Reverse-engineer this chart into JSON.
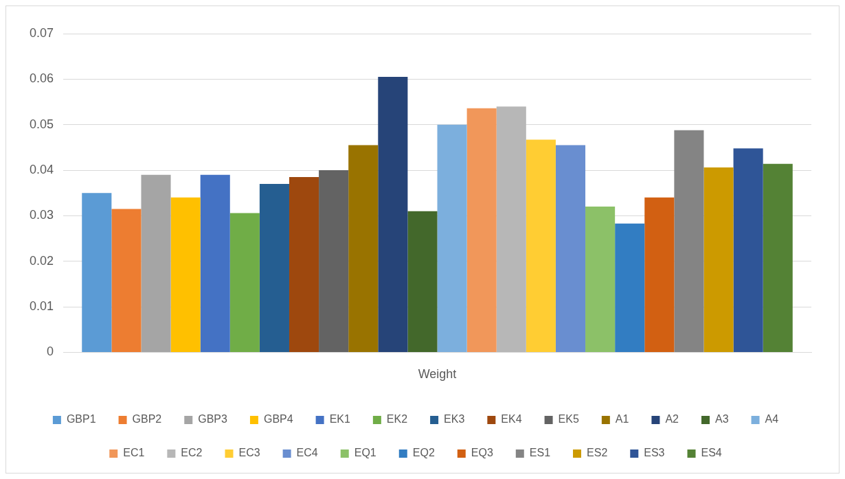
{
  "chart_data": {
    "type": "bar",
    "categories": [
      "Weight"
    ],
    "series": [
      {
        "name": "GBP1",
        "color": "#5b9bd5",
        "values": [
          0.035
        ]
      },
      {
        "name": "GBP2",
        "color": "#ed7d31",
        "values": [
          0.0315
        ]
      },
      {
        "name": "GBP3",
        "color": "#a5a5a5",
        "values": [
          0.039
        ]
      },
      {
        "name": "GBP4",
        "color": "#ffc000",
        "values": [
          0.034
        ]
      },
      {
        "name": "EK1",
        "color": "#4472c4",
        "values": [
          0.039
        ]
      },
      {
        "name": "EK2",
        "color": "#70ad47",
        "values": [
          0.0306
        ]
      },
      {
        "name": "EK3",
        "color": "#255e91",
        "values": [
          0.037
        ]
      },
      {
        "name": "EK4",
        "color": "#9e480e",
        "values": [
          0.0385
        ]
      },
      {
        "name": "EK5",
        "color": "#636363",
        "values": [
          0.04
        ]
      },
      {
        "name": "A1",
        "color": "#997300",
        "values": [
          0.0455
        ]
      },
      {
        "name": "A2",
        "color": "#264478",
        "values": [
          0.0605
        ]
      },
      {
        "name": "A3",
        "color": "#43682b",
        "values": [
          0.031
        ]
      },
      {
        "name": "A4",
        "color": "#7cafdd",
        "values": [
          0.05
        ]
      },
      {
        "name": "EC1",
        "color": "#f1975a",
        "values": [
          0.0536
        ]
      },
      {
        "name": "EC2",
        "color": "#b7b7b7",
        "values": [
          0.054
        ]
      },
      {
        "name": "EC3",
        "color": "#ffcd33",
        "values": [
          0.0467
        ]
      },
      {
        "name": "EC4",
        "color": "#698ed0",
        "values": [
          0.0455
        ]
      },
      {
        "name": "EQ1",
        "color": "#8cc168",
        "values": [
          0.032
        ]
      },
      {
        "name": "EQ2",
        "color": "#327dc2",
        "values": [
          0.0283
        ]
      },
      {
        "name": "EQ3",
        "color": "#d26012",
        "values": [
          0.034
        ]
      },
      {
        "name": "ES1",
        "color": "#848484",
        "values": [
          0.0488
        ]
      },
      {
        "name": "ES2",
        "color": "#cc9a00",
        "values": [
          0.0406
        ]
      },
      {
        "name": "ES3",
        "color": "#2f5597",
        "values": [
          0.0448
        ]
      },
      {
        "name": "ES4",
        "color": "#548235",
        "values": [
          0.0414
        ]
      }
    ],
    "ylim": [
      0,
      0.07
    ],
    "yticks": [
      0,
      0.01,
      0.02,
      0.03,
      0.04,
      0.05,
      0.06,
      0.07
    ],
    "grid": "y",
    "legend": "bottom"
  }
}
